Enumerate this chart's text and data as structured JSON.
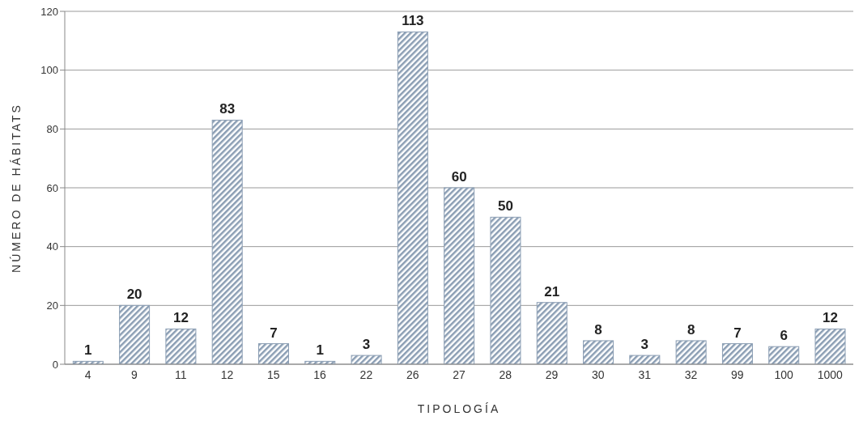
{
  "chart_data": {
    "type": "bar",
    "xlabel": "TIPOLOGÍA",
    "ylabel": "NÚMERO DE HÁBITATS",
    "categories": [
      "4",
      "9",
      "11",
      "12",
      "15",
      "16",
      "22",
      "26",
      "27",
      "28",
      "29",
      "30",
      "31",
      "32",
      "99",
      "100",
      "1000"
    ],
    "values": [
      1,
      20,
      12,
      83,
      7,
      1,
      3,
      113,
      60,
      50,
      21,
      8,
      3,
      8,
      7,
      6,
      12
    ],
    "color": "#8a9db3",
    "ylim": [
      0,
      120
    ],
    "yticks": [
      0,
      20,
      40,
      60,
      80,
      100,
      120
    ],
    "grid": "y",
    "data_labels": true
  }
}
